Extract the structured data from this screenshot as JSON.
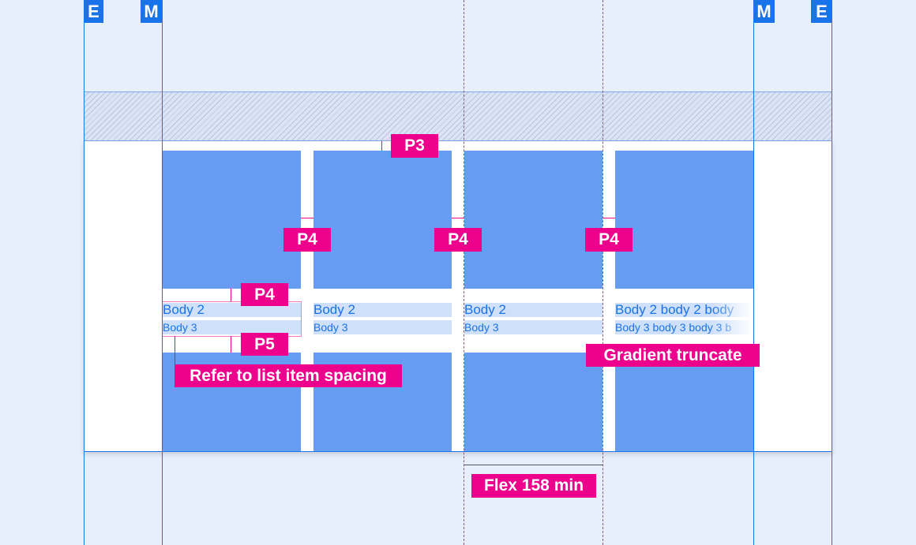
{
  "badges": {
    "edge_left": "E",
    "margin_left": "M",
    "margin_right": "M",
    "edge_right": "E"
  },
  "cards": [
    {
      "body2": "Body 2",
      "body3": "Body 3"
    },
    {
      "body2": "Body 2",
      "body3": "Body 3"
    },
    {
      "body2": "Body 2",
      "body3": "Body 3"
    },
    {
      "body2": "Body 2 body 2 body",
      "body3": "Body 3 body 3 body 3 b"
    }
  ],
  "annotations": {
    "p3": "P3",
    "p4": "P4",
    "p5": "P5",
    "list_spacing": "Refer to list item spacing",
    "gradient": "Gradient truncate",
    "flex": "Flex 158 min"
  },
  "colors": {
    "accent": "#1a73e8",
    "annotation": "#ec008c",
    "tile": "#669df2",
    "background": "#e8effc"
  }
}
